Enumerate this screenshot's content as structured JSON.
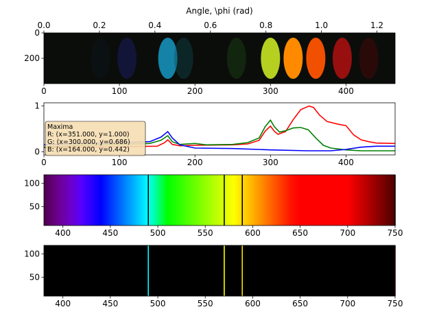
{
  "figure": {
    "top_axis": {
      "label": "Angle, \\phi (rad)",
      "range": [
        0.0,
        1.2654
      ],
      "ticks": [
        0.0,
        0.2,
        0.4,
        0.6,
        0.8,
        1.0,
        1.2
      ],
      "tick_labels": [
        "0.0",
        "0.2",
        "0.4",
        "0.6",
        "0.8",
        "1.0",
        "1.2"
      ]
    }
  },
  "chart_data": [
    {
      "id": "spectrum-image",
      "type": "heatmap",
      "xlim": [
        0,
        465
      ],
      "ylim": [
        400,
        0
      ],
      "xticks": [
        0,
        100,
        200,
        300,
        400
      ],
      "yticks": [
        0,
        200
      ],
      "bands": [
        {
          "x": 75,
          "color": "#0d1a30",
          "intensity": 0.25
        },
        {
          "x": 110,
          "color": "#1a1f70",
          "intensity": 0.45
        },
        {
          "x": 164,
          "color": "#1590b8",
          "intensity": 0.9
        },
        {
          "x": 185,
          "color": "#0f4e55",
          "intensity": 0.4
        },
        {
          "x": 255,
          "color": "#1e4a15",
          "intensity": 0.4
        },
        {
          "x": 300,
          "color": "#b5d020",
          "intensity": 1.0
        },
        {
          "x": 330,
          "color": "#ff8a00",
          "intensity": 1.0
        },
        {
          "x": 360,
          "color": "#f05000",
          "intensity": 1.0
        },
        {
          "x": 395,
          "color": "#b01010",
          "intensity": 0.85
        },
        {
          "x": 430,
          "color": "#4a0808",
          "intensity": 0.5
        }
      ]
    },
    {
      "id": "rgb-profile",
      "type": "line",
      "xlim": [
        0,
        465
      ],
      "ylim": [
        -0.07,
        1.07
      ],
      "xticks": [
        0,
        100,
        200,
        300,
        400
      ],
      "yticks": [
        0,
        1
      ],
      "series": [
        {
          "color": "#ff0000",
          "points": [
            [
              0,
              0.09
            ],
            [
              50,
              0.1
            ],
            [
              100,
              0.11
            ],
            [
              150,
              0.12
            ],
            [
              160,
              0.2
            ],
            [
              164,
              0.26
            ],
            [
              170,
              0.16
            ],
            [
              180,
              0.13
            ],
            [
              200,
              0.14
            ],
            [
              250,
              0.15
            ],
            [
              270,
              0.17
            ],
            [
              285,
              0.25
            ],
            [
              293,
              0.45
            ],
            [
              300,
              0.56
            ],
            [
              305,
              0.45
            ],
            [
              310,
              0.38
            ],
            [
              320,
              0.44
            ],
            [
              330,
              0.7
            ],
            [
              340,
              0.92
            ],
            [
              351,
              1.0
            ],
            [
              357,
              0.97
            ],
            [
              365,
              0.8
            ],
            [
              375,
              0.66
            ],
            [
              390,
              0.6
            ],
            [
              400,
              0.57
            ],
            [
              405,
              0.47
            ],
            [
              410,
              0.37
            ],
            [
              420,
              0.26
            ],
            [
              430,
              0.22
            ],
            [
              440,
              0.19
            ],
            [
              465,
              0.18
            ]
          ]
        },
        {
          "color": "#008000",
          "points": [
            [
              0,
              0.1
            ],
            [
              50,
              0.14
            ],
            [
              100,
              0.16
            ],
            [
              140,
              0.18
            ],
            [
              155,
              0.25
            ],
            [
              164,
              0.35
            ],
            [
              170,
              0.22
            ],
            [
              180,
              0.16
            ],
            [
              200,
              0.18
            ],
            [
              215,
              0.15
            ],
            [
              250,
              0.16
            ],
            [
              270,
              0.2
            ],
            [
              285,
              0.3
            ],
            [
              293,
              0.55
            ],
            [
              300,
              0.69
            ],
            [
              305,
              0.55
            ],
            [
              312,
              0.43
            ],
            [
              320,
              0.46
            ],
            [
              330,
              0.52
            ],
            [
              340,
              0.53
            ],
            [
              350,
              0.48
            ],
            [
              360,
              0.3
            ],
            [
              370,
              0.14
            ],
            [
              380,
              0.08
            ],
            [
              400,
              0.04
            ],
            [
              420,
              0.02
            ],
            [
              465,
              0.02
            ]
          ]
        },
        {
          "color": "#0000ff",
          "points": [
            [
              0,
              0.15
            ],
            [
              50,
              0.18
            ],
            [
              100,
              0.2
            ],
            [
              140,
              0.22
            ],
            [
              155,
              0.32
            ],
            [
              164,
              0.44
            ],
            [
              170,
              0.3
            ],
            [
              180,
              0.15
            ],
            [
              200,
              0.08
            ],
            [
              250,
              0.07
            ],
            [
              300,
              0.04
            ],
            [
              350,
              0.02
            ],
            [
              380,
              0.02
            ],
            [
              400,
              0.05
            ],
            [
              420,
              0.1
            ],
            [
              440,
              0.12
            ],
            [
              465,
              0.12
            ]
          ]
        }
      ],
      "annotation": {
        "lines": [
          "Maxima",
          "R: (x=351.000, y=1.000)",
          "G: (x=300.000, y=0.686)",
          "B: (x=164.000, y=0.442)"
        ],
        "box_color": "#f5deb3"
      }
    },
    {
      "id": "wavelength-colorbar",
      "type": "heatmap",
      "xlim": [
        380,
        750
      ],
      "ylim": [
        10,
        118
      ],
      "xticks": [
        400,
        450,
        500,
        550,
        600,
        650,
        700,
        750
      ],
      "yticks": [
        50,
        100
      ],
      "lines": [
        490,
        570,
        589,
        750
      ],
      "line_color": "#000000"
    },
    {
      "id": "emission-lines",
      "type": "bar",
      "xlim": [
        380,
        750
      ],
      "ylim": [
        10,
        118
      ],
      "xticks": [
        400,
        450,
        500,
        550,
        600,
        650,
        700,
        750
      ],
      "yticks": [
        50,
        100
      ],
      "lines": [
        {
          "x": 490,
          "color": "#00ffff"
        },
        {
          "x": 570,
          "color": "#ffff00"
        },
        {
          "x": 589,
          "color": "#ffdd00"
        },
        {
          "x": 750,
          "color": "#400000"
        }
      ]
    }
  ]
}
